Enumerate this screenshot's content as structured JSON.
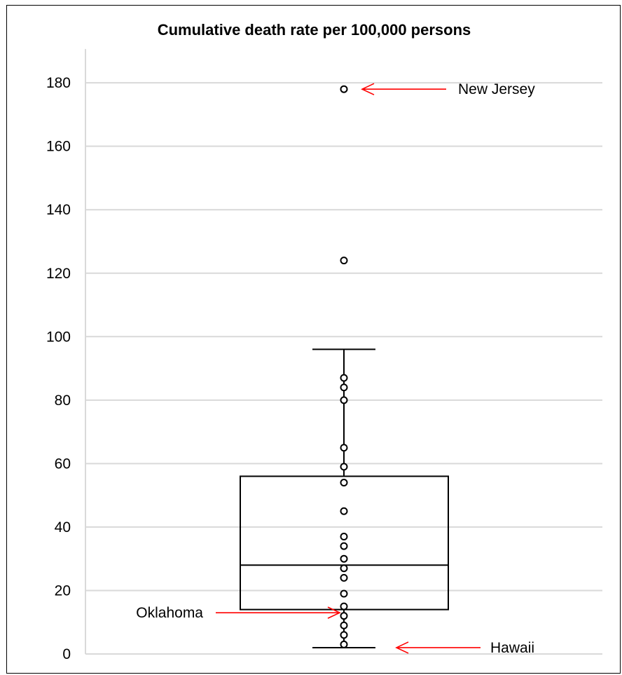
{
  "chart_data": {
    "type": "box",
    "title": "Cumulative death rate per 100,000 persons",
    "xlabel": "",
    "ylabel": "",
    "ylim": [
      0,
      190
    ],
    "yticks": [
      0,
      20,
      40,
      60,
      80,
      100,
      120,
      140,
      160,
      180
    ],
    "grid": true,
    "legend": "none",
    "box": {
      "min": 2,
      "q1": 14,
      "median": 28,
      "q3": 56,
      "max": 96
    },
    "points": [
      178,
      124,
      87,
      84,
      80,
      65,
      59,
      54,
      45,
      37,
      34,
      30,
      27,
      24,
      19,
      15,
      12,
      9,
      6,
      3
    ],
    "annotations": [
      {
        "label": "New Jersey",
        "value": 178,
        "side": "right"
      },
      {
        "label": "Oklahoma",
        "value": 13,
        "side": "left"
      },
      {
        "label": "Hawaii",
        "value": 2,
        "side": "right"
      }
    ],
    "colors": {
      "box": "#000000",
      "grid": "#d9d9d9",
      "arrow": "#ff0000",
      "point": "#000000"
    }
  }
}
